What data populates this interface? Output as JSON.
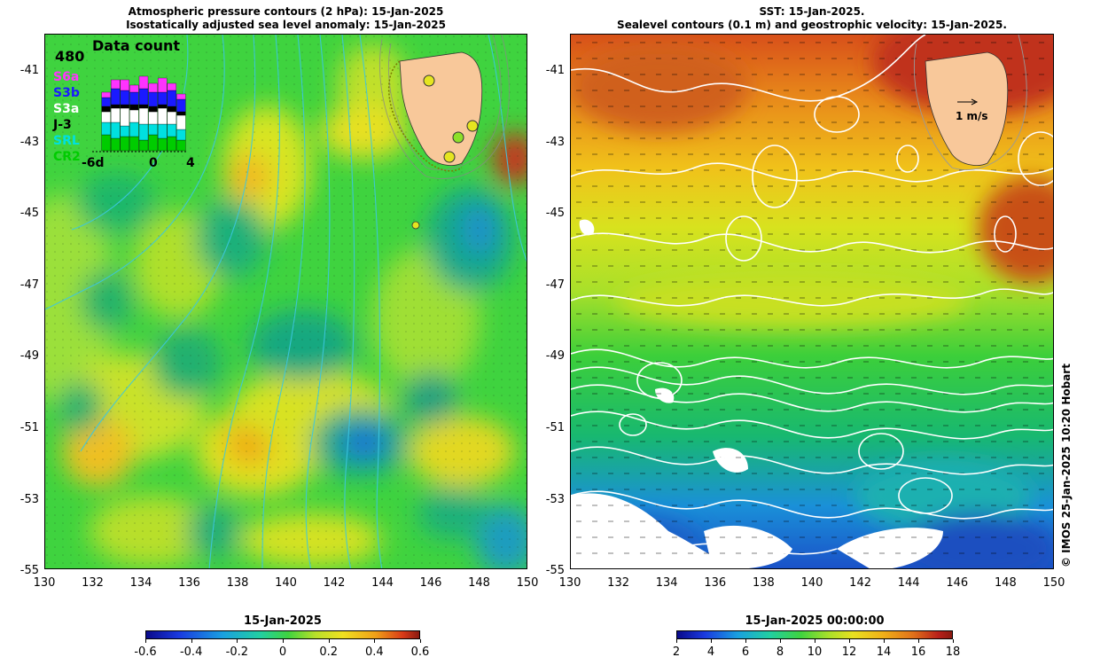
{
  "left": {
    "title_line1": "Atmospheric pressure contours (2 hPa): 15-Jan-2025",
    "title_line2": "Isostatically adjusted sea level anomaly: 15-Jan-2025",
    "inset": {
      "count_label": "480",
      "title": "Data count",
      "satellites": [
        {
          "name": "S6a",
          "color": "#ff33ff"
        },
        {
          "name": "S3b",
          "color": "#1a1aff"
        },
        {
          "name": "S3a",
          "color": "#ffffff"
        },
        {
          "name": "J-3",
          "color": "#000000"
        },
        {
          "name": "SRL",
          "color": "#00e0e0"
        },
        {
          "name": "CR2",
          "color": "#00cc00"
        }
      ],
      "x_labels": [
        "-6d",
        "0",
        "4"
      ]
    },
    "colorbar": {
      "title": "15-Jan-2025",
      "ticks": [
        "-0.6",
        "-0.4",
        "-0.2",
        "0",
        "0.2",
        "0.4",
        "0.6"
      ]
    }
  },
  "right": {
    "title_line1": "SST: 15-Jan-2025.",
    "title_line2": "Sealevel contours (0.1 m) and geostrophic velocity: 15-Jan-2025.",
    "scale_label": "1 m/s",
    "colorbar": {
      "title": "15-Jan-2025 00:00:00",
      "ticks": [
        "2",
        "4",
        "6",
        "8",
        "10",
        "12",
        "14",
        "16",
        "18"
      ]
    }
  },
  "axes": {
    "lat_labels": [
      "-41",
      "-43",
      "-45",
      "-47",
      "-49",
      "-51",
      "-53",
      "-55"
    ],
    "lon_labels": [
      "130",
      "132",
      "134",
      "136",
      "138",
      "140",
      "142",
      "144",
      "146",
      "148",
      "150"
    ]
  },
  "credit": "© IMOS 25-Jan-2025 10:20 Hobart",
  "colors": {
    "land": "#f8c89a",
    "anomaly_base": "#3fd33f",
    "contour_pressure": "#3cc7e0",
    "contour_sealevel": "#ffffff"
  }
}
